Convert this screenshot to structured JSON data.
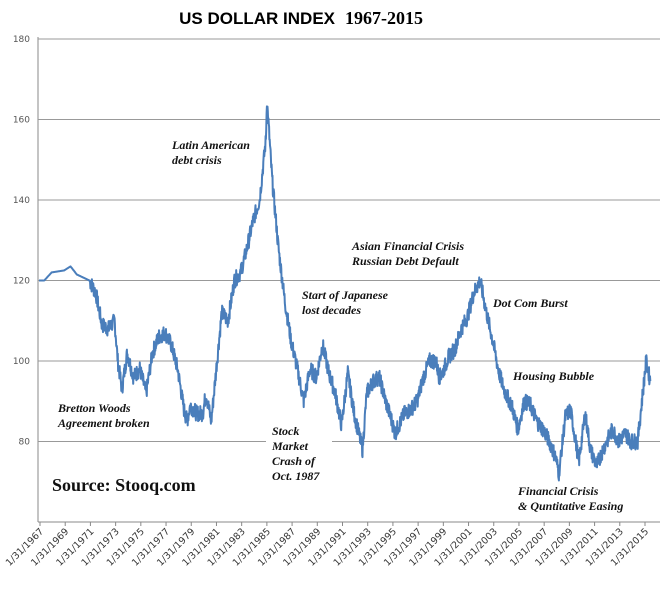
{
  "chart_data": {
    "type": "line",
    "title": "US DOLLAR INDEX",
    "title_years": "1967-2015",
    "xlabel": "",
    "ylabel": "",
    "ylim": [
      60,
      180
    ],
    "yticks": [
      80,
      100,
      120,
      140,
      160,
      180
    ],
    "xticks": [
      "1/31/1967",
      "1/31/1969",
      "1/31/1971",
      "1/31/1973",
      "1/31/1975",
      "1/31/1977",
      "1/31/1979",
      "1/31/1981",
      "1/31/1983",
      "1/31/1985",
      "1/31/1987",
      "1/31/1989",
      "1/31/1991",
      "1/31/1993",
      "1/31/1995",
      "1/31/1997",
      "1/31/1999",
      "1/31/2001",
      "1/31/2003",
      "1/31/2005",
      "1/31/2007",
      "1/31/2009",
      "1/31/2011",
      "1/31/2013",
      "1/31/2015"
    ],
    "grid": "horizontal",
    "line_color": "#4a7ebb",
    "series": [
      {
        "points": [
          [
            "1967-01",
            120
          ],
          [
            "1967-06",
            120
          ],
          [
            "1968-01",
            122
          ],
          [
            "1969-01",
            122.5
          ],
          [
            "1969-07",
            123.5
          ],
          [
            "1970-01",
            121.5
          ],
          [
            "1971-01",
            120
          ],
          [
            "1971-07",
            117
          ],
          [
            "1972-01",
            109
          ],
          [
            "1972-07",
            108
          ],
          [
            "1973-01",
            110
          ],
          [
            "1973-04",
            100
          ],
          [
            "1973-08",
            93
          ],
          [
            "1974-01",
            102
          ],
          [
            "1974-07",
            96
          ],
          [
            "1975-01",
            98
          ],
          [
            "1975-07",
            92
          ],
          [
            "1976-01",
            102
          ],
          [
            "1976-07",
            106
          ],
          [
            "1977-01",
            107
          ],
          [
            "1977-07",
            104
          ],
          [
            "1978-01",
            98
          ],
          [
            "1978-07",
            88
          ],
          [
            "1978-10",
            85
          ],
          [
            "1979-01",
            89
          ],
          [
            "1979-07",
            87
          ],
          [
            "1980-01",
            87
          ],
          [
            "1980-04",
            92
          ],
          [
            "1980-09",
            85
          ],
          [
            "1981-01",
            96
          ],
          [
            "1981-07",
            112
          ],
          [
            "1982-01",
            110
          ],
          [
            "1982-07",
            120
          ],
          [
            "1983-01",
            122
          ],
          [
            "1983-07",
            128
          ],
          [
            "1984-01",
            135
          ],
          [
            "1984-07",
            140
          ],
          [
            "1985-01",
            155
          ],
          [
            "1985-02",
            165
          ],
          [
            "1985-07",
            145
          ],
          [
            "1986-01",
            128
          ],
          [
            "1986-07",
            115
          ],
          [
            "1987-01",
            105
          ],
          [
            "1987-07",
            98
          ],
          [
            "1988-01",
            90
          ],
          [
            "1988-07",
            98
          ],
          [
            "1989-01",
            96
          ],
          [
            "1989-07",
            104
          ],
          [
            "1990-01",
            97
          ],
          [
            "1990-07",
            92
          ],
          [
            "1991-01",
            84
          ],
          [
            "1991-07",
            97
          ],
          [
            "1992-01",
            87
          ],
          [
            "1992-09",
            78
          ],
          [
            "1993-01",
            92
          ],
          [
            "1993-07",
            95
          ],
          [
            "1994-01",
            96
          ],
          [
            "1994-07",
            90
          ],
          [
            "1995-01",
            85
          ],
          [
            "1995-04",
            82
          ],
          [
            "1996-01",
            87
          ],
          [
            "1996-07",
            88
          ],
          [
            "1997-01",
            90
          ],
          [
            "1997-07",
            96
          ],
          [
            "1998-01",
            100
          ],
          [
            "1998-07",
            100
          ],
          [
            "1998-10",
            96
          ],
          [
            "1999-01",
            97
          ],
          [
            "1999-07",
            101
          ],
          [
            "2000-01",
            103
          ],
          [
            "2000-07",
            108
          ],
          [
            "2001-01",
            111
          ],
          [
            "2001-07",
            117
          ],
          [
            "2002-01",
            120
          ],
          [
            "2002-07",
            112
          ],
          [
            "2003-01",
            105
          ],
          [
            "2003-07",
            97
          ],
          [
            "2004-01",
            92
          ],
          [
            "2004-07",
            89
          ],
          [
            "2005-01",
            83
          ],
          [
            "2005-07",
            90
          ],
          [
            "2006-01",
            89
          ],
          [
            "2006-07",
            85
          ],
          [
            "2007-01",
            83
          ],
          [
            "2007-07",
            80
          ],
          [
            "2008-01",
            76
          ],
          [
            "2008-04",
            72
          ],
          [
            "2008-10",
            86
          ],
          [
            "2009-03",
            88
          ],
          [
            "2009-11",
            75
          ],
          [
            "2010-05",
            87
          ],
          [
            "2010-10",
            78
          ],
          [
            "2011-04",
            74
          ],
          [
            "2011-10",
            78
          ],
          [
            "2012-07",
            83
          ],
          [
            "2013-01",
            80
          ],
          [
            "2013-07",
            82
          ],
          [
            "2014-01",
            80
          ],
          [
            "2014-07",
            80
          ],
          [
            "2015-01",
            95
          ],
          [
            "2015-03",
            100
          ],
          [
            "2015-07",
            95
          ]
        ]
      }
    ],
    "annotations": [
      {
        "lines": [
          "Latin American",
          "debt crisis"
        ]
      },
      {
        "lines": [
          "Asian Financial Crisis",
          "Russian Debt Default"
        ]
      },
      {
        "lines": [
          "Start of Japanese",
          "lost decades"
        ]
      },
      {
        "lines": [
          "Dot Com Burst"
        ]
      },
      {
        "lines": [
          "Housing Bubble"
        ]
      },
      {
        "lines": [
          "Bretton Woods",
          "Agreement broken"
        ]
      },
      {
        "lines": [
          "Stock",
          "Market",
          "Crash of",
          "Oct. 1987"
        ]
      },
      {
        "lines": [
          "Financial Crisis",
          "& Quntitative Easing"
        ]
      }
    ],
    "source": "Source: Stooq.com"
  }
}
